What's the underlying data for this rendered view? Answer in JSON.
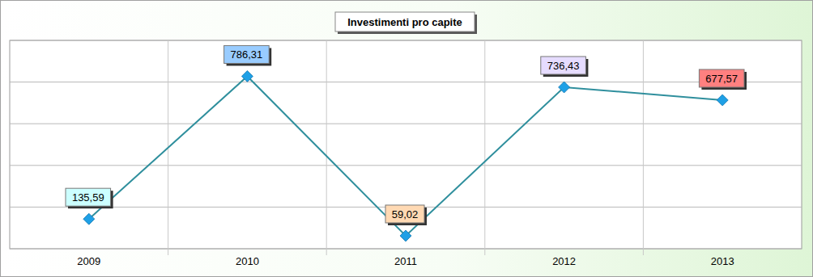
{
  "chart_data": {
    "type": "line",
    "title": "Investimenti pro capite",
    "categories": [
      "2009",
      "2010",
      "2011",
      "2012",
      "2013"
    ],
    "values": [
      135.59,
      786.31,
      59.02,
      736.43,
      677.57
    ],
    "value_labels": [
      "135,59",
      "786,31",
      "59,02",
      "736,43",
      "677,57"
    ],
    "color": "#2f8f9d",
    "marker": "diamond",
    "colors": [
      "#ccffff",
      "#99ccff",
      "#ffd9b3",
      "#e6dcff",
      "#ff8080"
    ],
    "ylim": [
      0,
      950
    ],
    "yticks": [
      0,
      190,
      380,
      570,
      760,
      950
    ],
    "grid": true,
    "data_labels": true,
    "tick_labels": "x"
  }
}
